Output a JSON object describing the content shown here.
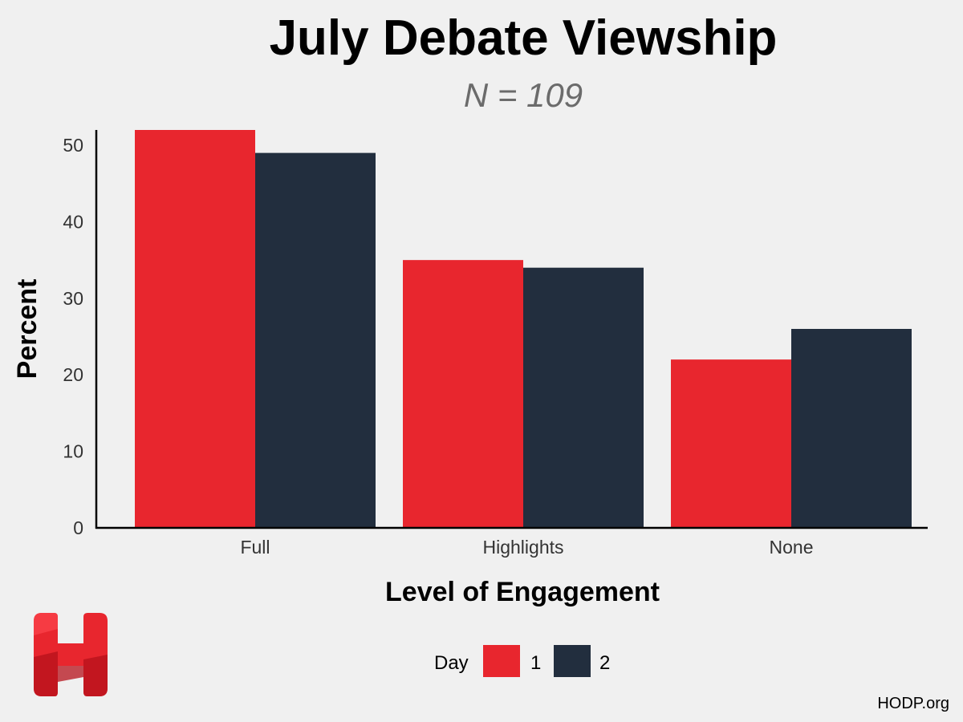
{
  "chart_data": {
    "type": "bar",
    "title": "July Debate Viewship",
    "subtitle": "N =  109",
    "xlabel": "Level of Engagement",
    "ylabel": "Percent",
    "categories": [
      "Full",
      "Highlights",
      "None"
    ],
    "series": [
      {
        "name": "1",
        "values": [
          52,
          35,
          22
        ]
      },
      {
        "name": "2",
        "values": [
          49,
          34,
          26
        ]
      }
    ],
    "ylim": [
      0,
      52
    ],
    "yticks": [
      0,
      10,
      20,
      30,
      40,
      50
    ],
    "legend": {
      "title": "Day",
      "position": "bottom"
    },
    "grid": false,
    "colors": [
      "#e8262e",
      "#222e3e"
    ]
  },
  "footer": {
    "source": "HODP.org",
    "logo_icon": "hodp-h-logo",
    "logo_color": "#e8262e"
  }
}
